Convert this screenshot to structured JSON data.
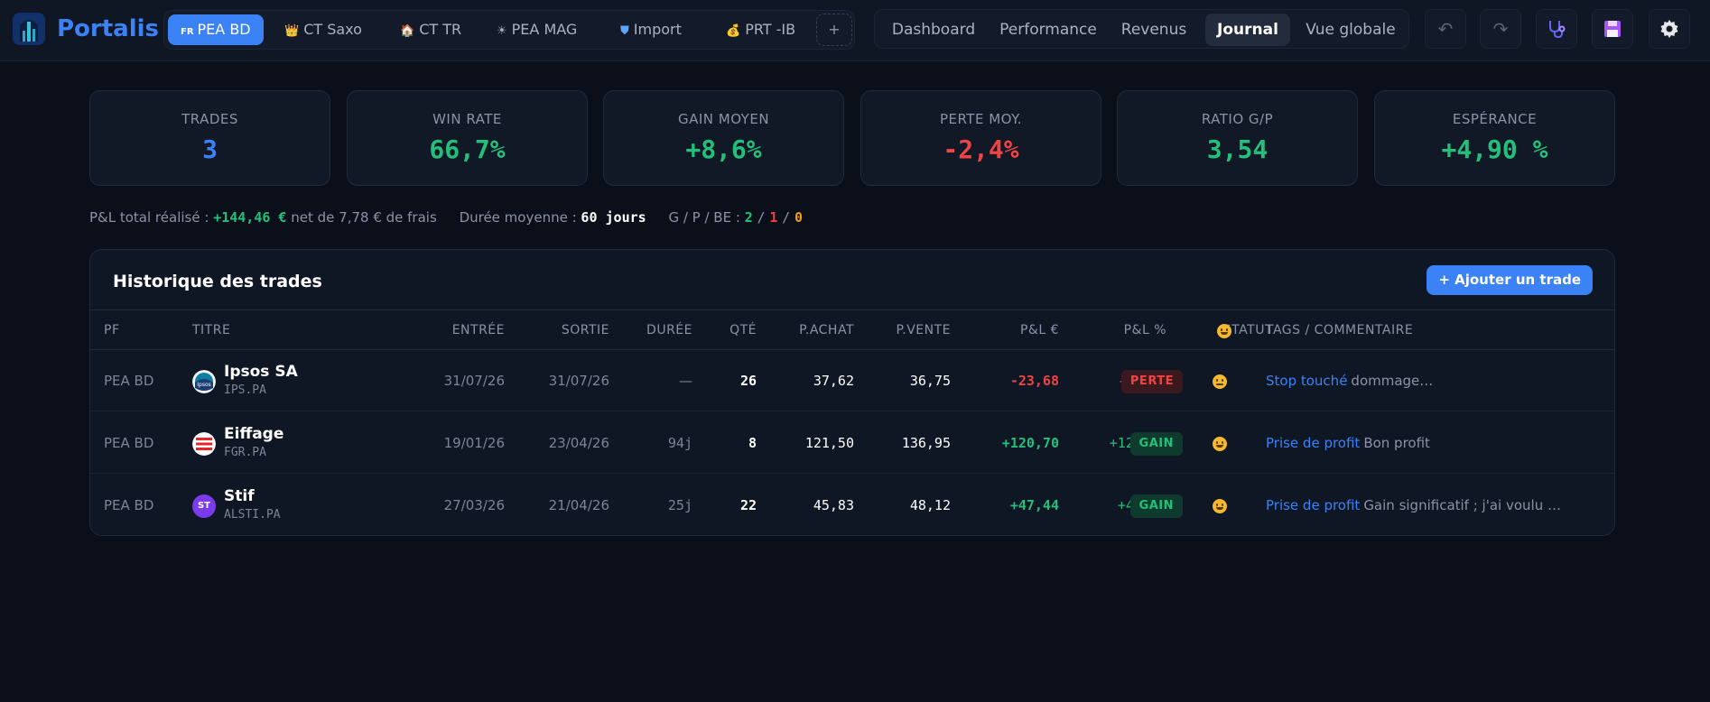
{
  "app": {
    "name": "Portalis"
  },
  "portfolio_tabs": [
    {
      "label": "PEA BD",
      "icon": "FR",
      "active": true
    },
    {
      "label": "CT Saxo",
      "icon": "crown-icon"
    },
    {
      "label": "CT TR",
      "icon": "house-icon"
    },
    {
      "label": "PEA MAG",
      "icon": "sun-icon"
    },
    {
      "label": "Import",
      "icon": "shield-icon"
    },
    {
      "label": "PRT -IB",
      "icon": "money-bag-icon"
    }
  ],
  "add_tab_label": "+",
  "nav_tabs": [
    {
      "label": "Dashboard"
    },
    {
      "label": "Performance"
    },
    {
      "label": "Revenus"
    },
    {
      "label": "Journal",
      "active": true
    },
    {
      "label": "Vue globale"
    }
  ],
  "toolbar": {
    "undo": "↶",
    "redo": "↷"
  },
  "kpis": [
    {
      "label": "TRADES",
      "value": "3",
      "color": "#3b82f6"
    },
    {
      "label": "WIN RATE",
      "value": "66,7%",
      "color": "#22c07a"
    },
    {
      "label": "GAIN MOYEN",
      "value": "+8,6%",
      "color": "#22c07a"
    },
    {
      "label": "PERTE MOY.",
      "value": "-2,4%",
      "color": "#ef4444"
    },
    {
      "label": "RATIO G/P",
      "value": "3,54",
      "color": "#22c07a"
    },
    {
      "label": "ESPÉRANCE",
      "value": "+4,90 %",
      "color": "#22c07a"
    }
  ],
  "summary": {
    "pnl_label": "P&L total réalisé :",
    "pnl_value": "+144,46 €",
    "fees_text": "net de 7,78 € de frais",
    "duration_label": "Durée moyenne :",
    "duration_value": "60 jours",
    "gpbe_label": "G / P / BE :",
    "g": "2",
    "sep1": "/",
    "p": "1",
    "sep2": "/",
    "be": "0"
  },
  "trades": {
    "title": "Historique des trades",
    "add_label": "+ Ajouter un trade",
    "columns": [
      "PF",
      "TITRE",
      "ENTRÉE",
      "SORTIE",
      "DURÉE",
      "QTÉ",
      "P.ACHAT",
      "P.VENTE",
      "P&L €",
      "P&L %",
      "STATUT",
      "😐",
      "TAGS / COMMENTAIRE"
    ],
    "rows": [
      {
        "pf": "PEA BD",
        "name": "Ipsos SA",
        "ticker": "IPS.PA",
        "logo": "ipsos",
        "entry": "31/07/26",
        "exit": "31/07/26",
        "duration": "—",
        "qty": "26",
        "buy": "37,62",
        "sell": "36,75",
        "pnl_eur": "-23,68",
        "pnl_pct": "-2,42%",
        "status": "PERTE",
        "positive": false,
        "tag": "Stop touché",
        "comment": "dommage…"
      },
      {
        "pf": "PEA BD",
        "name": "Eiffage",
        "ticker": "FGR.PA",
        "logo": "eiffage",
        "entry": "19/01/26",
        "exit": "23/04/26",
        "duration": "94j",
        "qty": "8",
        "buy": "121,50",
        "sell": "136,95",
        "pnl_eur": "+120,70",
        "pnl_pct": "+12,42%",
        "status": "GAIN",
        "positive": true,
        "tag": "Prise de profit",
        "comment": "Bon profit"
      },
      {
        "pf": "PEA BD",
        "name": "Stif",
        "ticker": "ALSTI.PA",
        "logo": "ST",
        "entry": "27/03/26",
        "exit": "21/04/26",
        "duration": "25j",
        "qty": "22",
        "buy": "45,83",
        "sell": "48,12",
        "pnl_eur": "+47,44",
        "pnl_pct": "+4,70%",
        "status": "GAIN",
        "positive": true,
        "tag": "Prise de profit",
        "comment": "Gain significatif ; j'ai voulu …"
      }
    ]
  },
  "colors": {
    "accent": "#3b82f6",
    "gain": "#22c07a",
    "loss": "#ef4444",
    "warn": "#f59e0b"
  }
}
